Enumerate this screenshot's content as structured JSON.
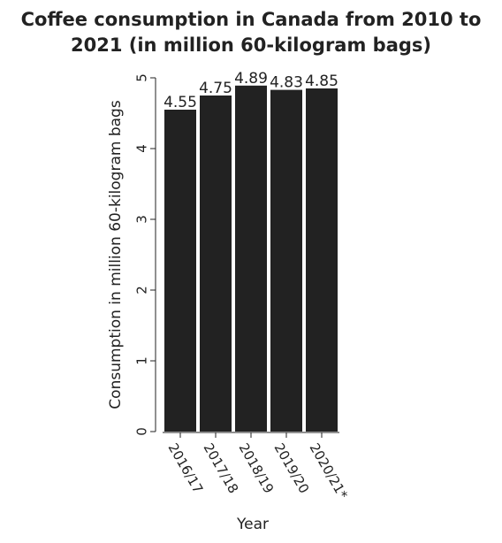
{
  "chart_data": {
    "type": "bar",
    "title_lines": [
      "Coffee consumption in Canada from 2010 to",
      "2021 (in million 60-kilogram bags)"
    ],
    "xlabel": "Year",
    "ylabel": "Consumption in million 60-kilogram bags",
    "categories": [
      "2016/17",
      "2017/18",
      "2018/19",
      "2019/20",
      "2020/21*"
    ],
    "values": [
      4.55,
      4.75,
      4.89,
      4.83,
      4.85
    ],
    "data_labels": [
      "4.55",
      "4.75",
      "4.89",
      "4.83",
      "4.85"
    ],
    "yticks": [
      0,
      1,
      2,
      3,
      4,
      5
    ],
    "ylim": [
      0,
      5
    ],
    "grid": false,
    "bar_color": "#222222"
  }
}
